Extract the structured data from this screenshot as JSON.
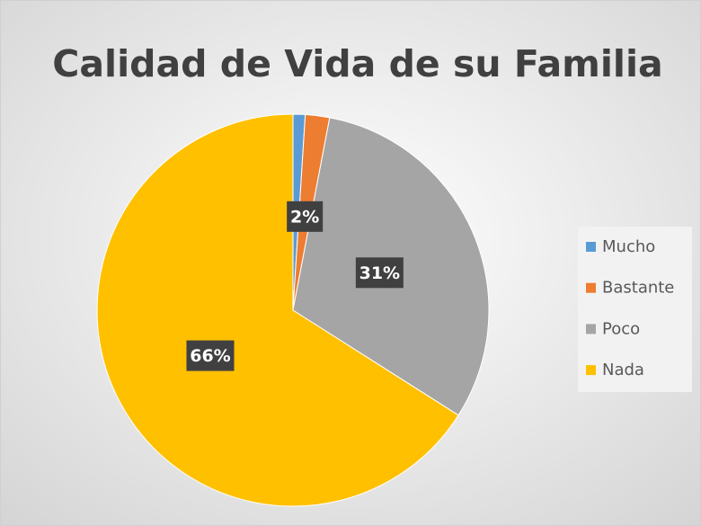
{
  "chart_data": {
    "type": "pie",
    "title": "Calidad de Vida de su Familia",
    "categories": [
      "Mucho",
      "Bastante",
      "Poco",
      "Nada"
    ],
    "values": [
      1,
      2,
      31,
      66
    ],
    "value_labels": [
      null,
      "2%",
      "31%",
      "66%"
    ],
    "colors": [
      "#5b9bd5",
      "#ed7d31",
      "#a5a5a5",
      "#ffc000"
    ],
    "legend": "right"
  }
}
